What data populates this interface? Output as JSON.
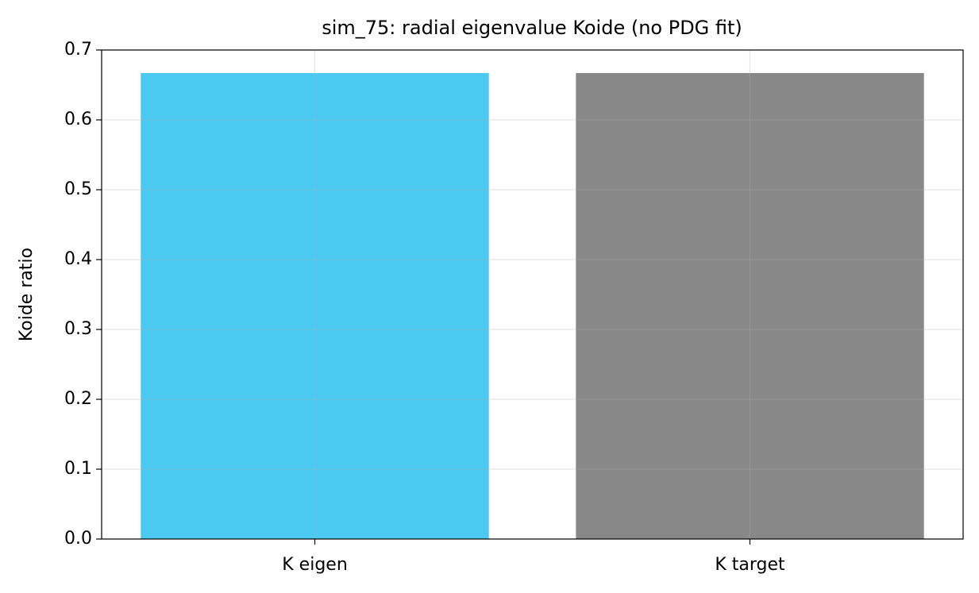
{
  "chart_data": {
    "type": "bar",
    "title": "sim_75: radial eigenvalue Koide (no PDG fit)",
    "y_label": "Koide ratio",
    "categories": [
      "K eigen",
      "K target"
    ],
    "values": [
      0.667,
      0.667
    ],
    "colors": [
      "#4bc9f0",
      "#888888"
    ],
    "ylim": [
      0,
      0.7
    ],
    "yticks": [
      {
        "value": 0,
        "label": "0.0"
      },
      0.1,
      0.2,
      0.3,
      0.4,
      0.5,
      0.6,
      0.7
    ],
    "grid": true
  }
}
